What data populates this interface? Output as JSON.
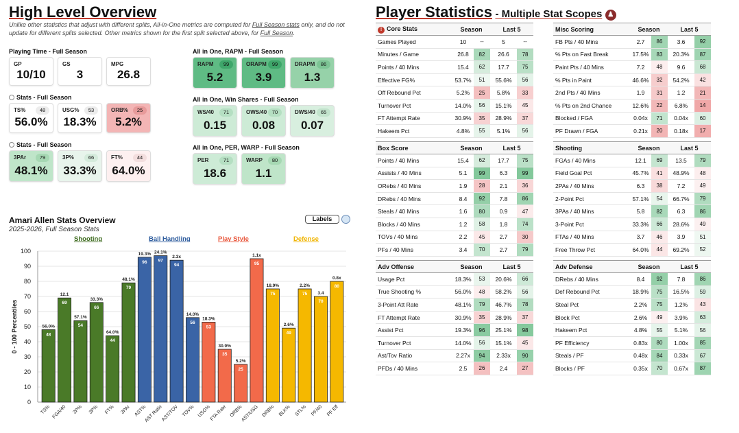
{
  "overview": {
    "title": "High Level Overview",
    "note_html": "Unlike other statistics that adjust with different splits, All-in-One metrics are computed for <u>Full Season stats</u> only, and do not update for different splits selected. Other metrics shown for the first split selected above, for <u>Full Season</u>.",
    "playing_time_label": "Playing Time - Full Season",
    "playing_time": [
      {
        "label": "GP",
        "value": "10/10"
      },
      {
        "label": "GS",
        "value": "3"
      },
      {
        "label": "MPG",
        "value": "26.8"
      }
    ],
    "stats1_label": "Stats - Full Season",
    "stats1": [
      {
        "label": "TS%",
        "pct": "48",
        "value": "56.0%",
        "bg": "#ffffff",
        "pctbg": "#ececec"
      },
      {
        "label": "USG%",
        "pct": "53",
        "value": "18.3%",
        "bg": "#ffffff",
        "pctbg": "#ececec"
      },
      {
        "label": "ORB%",
        "pct": "25",
        "value": "5.2%",
        "bg": "#f3b5b5",
        "pctbg": "#e79a9a"
      }
    ],
    "stats2_label": "Stats - Full Season",
    "stats2": [
      {
        "label": "3PAr",
        "pct": "79",
        "value": "48.1%",
        "bg": "#bfe5c9",
        "pctbg": "#a6d8b3"
      },
      {
        "label": "3P%",
        "pct": "66",
        "value": "33.3%",
        "bg": "#e8f4ec",
        "pctbg": "#d5ebdc"
      },
      {
        "label": "FT%",
        "pct": "44",
        "value": "64.0%",
        "bg": "#fdf0f0",
        "pctbg": "#f3dede"
      }
    ],
    "rapm_label": "All in One, RAPM - Full Season",
    "rapm": [
      {
        "label": "RAPM",
        "pct": "99",
        "value": "5.2",
        "bg": "#5fbb84",
        "pctbg": "#3ea66a"
      },
      {
        "label": "ORAPM",
        "pct": "99",
        "value": "3.9",
        "bg": "#5fbb84",
        "pctbg": "#3ea66a"
      },
      {
        "label": "DRAPM",
        "pct": "86",
        "value": "1.3",
        "bg": "#96d2a9",
        "pctbg": "#7cc494"
      }
    ],
    "ws_label": "All in One, Win Shares - Full Season",
    "ws": [
      {
        "label": "WS/40",
        "pct": "71",
        "value": "0.15",
        "bg": "#cdebd6",
        "pctbg": "#b5dfc2"
      },
      {
        "label": "OWS/40",
        "pct": "70",
        "value": "0.08",
        "bg": "#cdebd6",
        "pctbg": "#b5dfc2"
      },
      {
        "label": "DWS/40",
        "pct": "65",
        "value": "0.07",
        "bg": "#d8efdf",
        "pctbg": "#c2e3cc"
      }
    ],
    "per_label": "All in One, PER, WARP - Full Season",
    "per": [
      {
        "label": "PER",
        "pct": "71",
        "value": "18.6",
        "bg": "#cdebd6",
        "pctbg": "#b5dfc2"
      },
      {
        "label": "WARP",
        "pct": "80",
        "value": "1.1",
        "bg": "#bfe5c9",
        "pctbg": "#a6d8b3"
      }
    ]
  },
  "player_stats": {
    "title": "Player Statistics",
    "subtitle": "- Multiple Stat Scopes",
    "tables": [
      {
        "title": "Core Stats",
        "info_icon": true,
        "col_season": "Season",
        "col_last5": "Last 5",
        "rows": [
          {
            "name": "Games Played",
            "s": "10",
            "sp": "--",
            "l": "5",
            "lp": "--"
          },
          {
            "name": "Minutes / Game",
            "s": "26.8",
            "sp": "82",
            "l": "26.6",
            "lp": "78"
          },
          {
            "name": "Points / 40 Mins",
            "s": "15.4",
            "sp": "62",
            "l": "17.7",
            "lp": "75"
          },
          {
            "name": "Effective FG%",
            "s": "53.7%",
            "sp": "51",
            "l": "55.6%",
            "lp": "56"
          },
          {
            "name": "Off Rebound Pct",
            "s": "5.2%",
            "sp": "25",
            "l": "5.8%",
            "lp": "33"
          },
          {
            "name": "Turnover Pct",
            "s": "14.0%",
            "sp": "56",
            "l": "15.1%",
            "lp": "45"
          },
          {
            "name": "FT Attempt Rate",
            "s": "30.9%",
            "sp": "35",
            "l": "28.9%",
            "lp": "37"
          },
          {
            "name": "Hakeem Pct",
            "s": "4.8%",
            "sp": "55",
            "l": "5.1%",
            "lp": "56"
          }
        ]
      },
      {
        "title": "Misc Scoring",
        "col_season": "Season",
        "col_last5": "Last 5",
        "rows": [
          {
            "name": "FB Pts / 40 Mins",
            "s": "2.7",
            "sp": "86",
            "l": "3.6",
            "lp": "92"
          },
          {
            "name": "% Pts on Fast Break",
            "s": "17.5%",
            "sp": "83",
            "l": "20.3%",
            "lp": "87"
          },
          {
            "name": "Paint Pts / 40 Mins",
            "s": "7.2",
            "sp": "48",
            "l": "9.6",
            "lp": "68"
          },
          {
            "name": "% Pts in Paint",
            "s": "46.6%",
            "sp": "32",
            "l": "54.2%",
            "lp": "42"
          },
          {
            "name": "2nd Pts / 40 Mins",
            "s": "1.9",
            "sp": "31",
            "l": "1.2",
            "lp": "21"
          },
          {
            "name": "% Pts on 2nd Chance",
            "s": "12.6%",
            "sp": "22",
            "l": "6.8%",
            "lp": "14"
          },
          {
            "name": "Blocked / FGA",
            "s": "0.04x",
            "sp": "71",
            "l": "0.04x",
            "lp": "60"
          },
          {
            "name": "PF Drawn / FGA",
            "s": "0.21x",
            "sp": "20",
            "l": "0.18x",
            "lp": "17"
          }
        ]
      },
      {
        "title": "Box Score",
        "col_season": "Season",
        "col_last5": "Last 5",
        "rows": [
          {
            "name": "Points / 40 Mins",
            "s": "15.4",
            "sp": "62",
            "l": "17.7",
            "lp": "75"
          },
          {
            "name": "Assists / 40 Mins",
            "s": "5.1",
            "sp": "99",
            "l": "6.3",
            "lp": "99"
          },
          {
            "name": "ORebs / 40 Mins",
            "s": "1.9",
            "sp": "28",
            "l": "2.1",
            "lp": "36"
          },
          {
            "name": "DRebs / 40 Mins",
            "s": "8.4",
            "sp": "92",
            "l": "7.8",
            "lp": "86"
          },
          {
            "name": "Steals / 40 Mins",
            "s": "1.6",
            "sp": "80",
            "l": "0.9",
            "lp": "47"
          },
          {
            "name": "Blocks / 40 Mins",
            "s": "1.2",
            "sp": "58",
            "l": "1.8",
            "lp": "74"
          },
          {
            "name": "TOVs / 40 Mins",
            "s": "2.2",
            "sp": "45",
            "l": "2.7",
            "lp": "30"
          },
          {
            "name": "PFs / 40 Mins",
            "s": "3.4",
            "sp": "70",
            "l": "2.7",
            "lp": "79"
          }
        ]
      },
      {
        "title": "Shooting",
        "col_season": "Season",
        "col_last5": "Last 5",
        "rows": [
          {
            "name": "FGAs / 40 Mins",
            "s": "12.1",
            "sp": "69",
            "l": "13.5",
            "lp": "79"
          },
          {
            "name": "Field Goal Pct",
            "s": "45.7%",
            "sp": "41",
            "l": "48.9%",
            "lp": "48"
          },
          {
            "name": "2PAs / 40 Mins",
            "s": "6.3",
            "sp": "38",
            "l": "7.2",
            "lp": "49"
          },
          {
            "name": "2-Point Pct",
            "s": "57.1%",
            "sp": "54",
            "l": "66.7%",
            "lp": "79"
          },
          {
            "name": "3PAs / 40 Mins",
            "s": "5.8",
            "sp": "82",
            "l": "6.3",
            "lp": "86"
          },
          {
            "name": "3-Point Pct",
            "s": "33.3%",
            "sp": "66",
            "l": "28.6%",
            "lp": "49"
          },
          {
            "name": "FTAs / 40 Mins",
            "s": "3.7",
            "sp": "46",
            "l": "3.9",
            "lp": "51"
          },
          {
            "name": "Free Throw Pct",
            "s": "64.0%",
            "sp": "44",
            "l": "69.2%",
            "lp": "52"
          }
        ]
      },
      {
        "title": "Adv Offense",
        "col_season": "Season",
        "col_last5": "Last 5",
        "rows": [
          {
            "name": "Usage Pct",
            "s": "18.3%",
            "sp": "53",
            "l": "20.6%",
            "lp": "66"
          },
          {
            "name": "True Shooting %",
            "s": "56.0%",
            "sp": "48",
            "l": "58.2%",
            "lp": "56"
          },
          {
            "name": "3-Point Att Rate",
            "s": "48.1%",
            "sp": "79",
            "l": "46.7%",
            "lp": "78"
          },
          {
            "name": "FT Attempt Rate",
            "s": "30.9%",
            "sp": "35",
            "l": "28.9%",
            "lp": "37"
          },
          {
            "name": "Assist Pct",
            "s": "19.3%",
            "sp": "96",
            "l": "25.1%",
            "lp": "98"
          },
          {
            "name": "Turnover Pct",
            "s": "14.0%",
            "sp": "56",
            "l": "15.1%",
            "lp": "45"
          },
          {
            "name": "Ast/Tov Ratio",
            "s": "2.27x",
            "sp": "94",
            "l": "2.33x",
            "lp": "90"
          },
          {
            "name": "PFDs / 40 Mins",
            "s": "2.5",
            "sp": "26",
            "l": "2.4",
            "lp": "27"
          }
        ]
      },
      {
        "title": "Adv Defense",
        "col_season": "Season",
        "col_last5": "Last 5",
        "rows": [
          {
            "name": "DRebs / 40 Mins",
            "s": "8.4",
            "sp": "92",
            "l": "7.8",
            "lp": "86"
          },
          {
            "name": "Def Rebound Pct",
            "s": "18.9%",
            "sp": "75",
            "l": "16.5%",
            "lp": "59"
          },
          {
            "name": "Steal Pct",
            "s": "2.2%",
            "sp": "75",
            "l": "1.2%",
            "lp": "43"
          },
          {
            "name": "Block Pct",
            "s": "2.6%",
            "sp": "49",
            "l": "3.9%",
            "lp": "63"
          },
          {
            "name": "Hakeem Pct",
            "s": "4.8%",
            "sp": "55",
            "l": "5.1%",
            "lp": "56"
          },
          {
            "name": "PF Efficiency",
            "s": "0.83x",
            "sp": "80",
            "l": "1.00x",
            "lp": "85"
          },
          {
            "name": "Steals / PF",
            "s": "0.48x",
            "sp": "84",
            "l": "0.33x",
            "lp": "67"
          },
          {
            "name": "Blocks / PF",
            "s": "0.35x",
            "sp": "70",
            "l": "0.67x",
            "lp": "87"
          }
        ]
      }
    ]
  },
  "chart": {
    "labels_button": "Labels",
    "categories_hdr": [
      {
        "name": "Shooting",
        "color": "#3e6b1f"
      },
      {
        "name": "Ball Handling",
        "color": "#2f5d9e"
      },
      {
        "name": "Play Style",
        "color": "#e8553a"
      },
      {
        "name": "Defense",
        "color": "#f0b400"
      }
    ]
  },
  "chart_data": {
    "type": "bar",
    "title": "Amari Allen Stats Overview",
    "subtitle": "2025-2026, Full Season Stats",
    "ylabel": "0 - 100 Percentiles",
    "ylim": [
      0,
      100
    ],
    "yticks": [
      0,
      10,
      20,
      30,
      40,
      50,
      60,
      70,
      80,
      90,
      100
    ],
    "bars": [
      {
        "cat": "TS%",
        "value": 48,
        "top": "56.0%",
        "group": "shooting"
      },
      {
        "cat": "FGA/40",
        "value": 69,
        "top": "12.1",
        "group": "shooting"
      },
      {
        "cat": "2P%",
        "value": 54,
        "top": "57.1%",
        "group": "shooting"
      },
      {
        "cat": "3P%",
        "value": 66,
        "top": "33.3%",
        "group": "shooting"
      },
      {
        "cat": "FT%",
        "value": 44,
        "top": "64.0%",
        "group": "shooting"
      },
      {
        "cat": "3PAr",
        "value": 79,
        "top": "48.1%",
        "group": "shooting"
      },
      {
        "cat": "AST%",
        "value": 96,
        "top": "19.3%",
        "group": "ball"
      },
      {
        "cat": "AST Ratio",
        "value": 97,
        "top": "24.1%",
        "group": "ball"
      },
      {
        "cat": "AST/TOV",
        "value": 94,
        "top": "2.3x",
        "group": "ball"
      },
      {
        "cat": "TOV%",
        "value": 56,
        "top": "14.0%",
        "group": "ball"
      },
      {
        "cat": "USG%",
        "value": 53,
        "top": "18.3%",
        "group": "play"
      },
      {
        "cat": "FTA Rate",
        "value": 35,
        "top": "30.9%",
        "group": "play"
      },
      {
        "cat": "ORB%",
        "value": 25,
        "top": "5.2%",
        "group": "play"
      },
      {
        "cat": "AST/USG",
        "value": 95,
        "top": "1.1x",
        "group": "play"
      },
      {
        "cat": "DRB%",
        "value": 75,
        "top": "18.9%",
        "group": "defense"
      },
      {
        "cat": "BLK%",
        "value": 49,
        "top": "2.6%",
        "group": "defense"
      },
      {
        "cat": "STL%",
        "value": 75,
        "top": "2.2%",
        "group": "defense"
      },
      {
        "cat": "PF/40",
        "value": 70,
        "top": "3.4",
        "group": "defense"
      },
      {
        "cat": "PF Eff",
        "value": 80,
        "top": "0.8x",
        "group": "defense"
      }
    ],
    "group_colors": {
      "shooting": "#4a7a28",
      "ball": "#3a64a6",
      "play": "#f26a4a",
      "defense": "#f5b800"
    }
  }
}
